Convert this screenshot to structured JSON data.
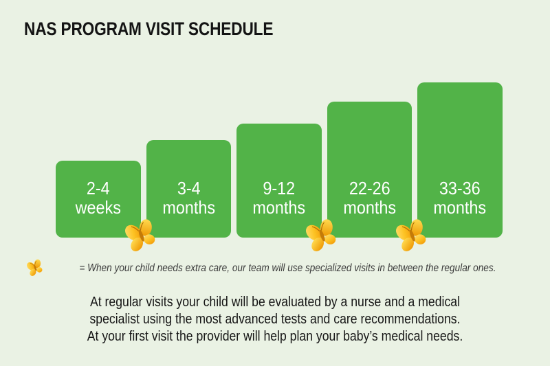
{
  "title": "NAS PROGRAM VISIT SCHEDULE",
  "colors": {
    "background": "#eaf2e4",
    "bar": "#52b348",
    "bar_text": "#ffffff",
    "title_text": "#141414",
    "legend_text": "#3b3b3b",
    "paragraph_text": "#161616",
    "butterfly_light": "#ffe27a",
    "butterfly_dark": "#f09000"
  },
  "chart_data": {
    "type": "bar",
    "title": "NAS PROGRAM VISIT SCHEDULE",
    "categories": [
      "2-4 weeks",
      "3-4 months",
      "9-12 months",
      "22-26 months",
      "33-36 months"
    ],
    "bar_labels": [
      [
        "2-4",
        "weeks"
      ],
      [
        "3-4",
        "months"
      ],
      [
        "9-12",
        "months"
      ],
      [
        "22-26",
        "months"
      ],
      [
        "33-36",
        "months"
      ]
    ],
    "values": [
      112,
      142,
      166,
      198,
      226
    ],
    "value_meaning": "relative bar height in pixels (stepped timeline, no numeric axis)",
    "butterfly_after_bar": [
      1,
      3,
      4
    ],
    "legend_position": "below chart",
    "grid": false
  },
  "legend": {
    "symbol": "butterfly-icon",
    "text": "= When your child needs extra care, our team will use specialized visits in between the regular ones."
  },
  "paragraph": {
    "lines": [
      "At regular visits your child will be evaluated by a nurse and a medical",
      "specialist using the most advanced tests and care recommendations.",
      "At your first visit the provider will help plan your baby’s medical needs."
    ]
  }
}
